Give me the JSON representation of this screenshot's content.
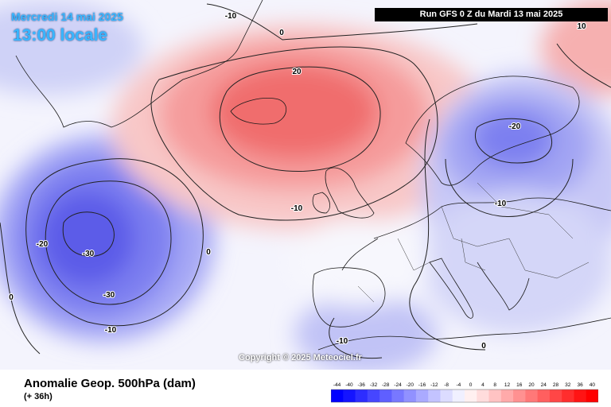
{
  "header": {
    "date": "Mercredi 14 mai 2025",
    "time": "13:00 locale",
    "run": "Run GFS 0 Z du Mardi 13 mai 2025"
  },
  "copyright": "Copyright © 2025 Meteociel.fr",
  "footer": {
    "title": "Anomalie Geop. 500hPa (dam)",
    "subtitle": "(+ 36h)"
  },
  "contour_labels": [
    {
      "name": "contour-label-north-10",
      "text": "-10"
    },
    {
      "name": "contour-label-north-0",
      "text": "0"
    },
    {
      "name": "contour-label-northeast-10",
      "text": "10"
    },
    {
      "name": "contour-label-ridge-20",
      "text": "20"
    },
    {
      "name": "contour-label-scandinavia-20",
      "text": "-20"
    },
    {
      "name": "contour-label-uk-10",
      "text": "-10"
    },
    {
      "name": "contour-label-east-10",
      "text": "-10"
    },
    {
      "name": "contour-label-atlantic-20",
      "text": "-20"
    },
    {
      "name": "contour-label-atlantic-30a",
      "text": "-30"
    },
    {
      "name": "contour-label-atlantic-30b",
      "text": "-30"
    },
    {
      "name": "contour-label-atlantic-10",
      "text": "-10"
    },
    {
      "name": "contour-label-atlantic-0",
      "text": "0"
    },
    {
      "name": "contour-label-west-0",
      "text": "0"
    },
    {
      "name": "contour-label-spain-10",
      "text": "-10"
    },
    {
      "name": "contour-label-med-0",
      "text": "0"
    }
  ],
  "legend": {
    "labels": [
      "-44",
      "-40",
      "-36",
      "-32",
      "-28",
      "-24",
      "-20",
      "-16",
      "-12",
      "-8",
      "-4",
      "0",
      "4",
      "8",
      "12",
      "16",
      "20",
      "24",
      "28",
      "32",
      "36",
      "40"
    ],
    "colors": [
      "#0000ff",
      "#1414ff",
      "#2d2dff",
      "#4646ff",
      "#5f5fff",
      "#7878ff",
      "#9191ff",
      "#aaaaff",
      "#c3c3ff",
      "#dcdcff",
      "#f0f0ff",
      "#fff0f0",
      "#ffdcdc",
      "#ffc3c3",
      "#ffaaaa",
      "#ff9191",
      "#ff7878",
      "#ff5f5f",
      "#ff4646",
      "#ff2d2d",
      "#ff1414",
      "#ff0000"
    ]
  }
}
